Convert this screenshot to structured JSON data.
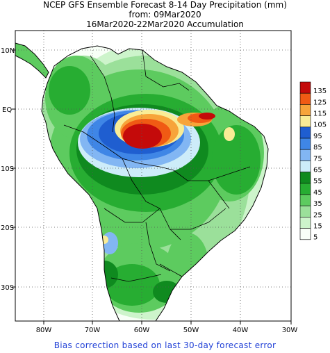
{
  "header": {
    "title": "NCEP GFS Ensemble Forecast 8-14 Day Precipitation (mm)",
    "from": "from: 09Mar2020",
    "accumulation": "16Mar2020-22Mar2020 Accumulation"
  },
  "footer": {
    "note": "Bias correction based on last 30-day forecast error"
  },
  "axes": {
    "lat_labels": [
      "10N",
      "EQ",
      "10S",
      "20S",
      "30S"
    ],
    "lon_labels": [
      "80W",
      "70W",
      "60W",
      "50W",
      "40W",
      "30W"
    ]
  },
  "legend": {
    "levels": [
      {
        "label": "135",
        "color": "#c40a0a"
      },
      {
        "label": "125",
        "color": "#f05a14"
      },
      {
        "label": "115",
        "color": "#f7a43a"
      },
      {
        "label": "105",
        "color": "#f9ec96"
      },
      {
        "label": "95",
        "color": "#1f5ed0"
      },
      {
        "label": "85",
        "color": "#3f86e6"
      },
      {
        "label": "75",
        "color": "#82b6f3"
      },
      {
        "label": "65",
        "color": "#cdecf9"
      },
      {
        "label": "55",
        "color": "#0f8a1f"
      },
      {
        "label": "45",
        "color": "#27ad32"
      },
      {
        "label": "35",
        "color": "#5dcb5f"
      },
      {
        "label": "25",
        "color": "#9be09a"
      },
      {
        "label": "15",
        "color": "#cdf4cb"
      },
      {
        "label": "5",
        "color": "#f8fff7"
      }
    ]
  }
}
